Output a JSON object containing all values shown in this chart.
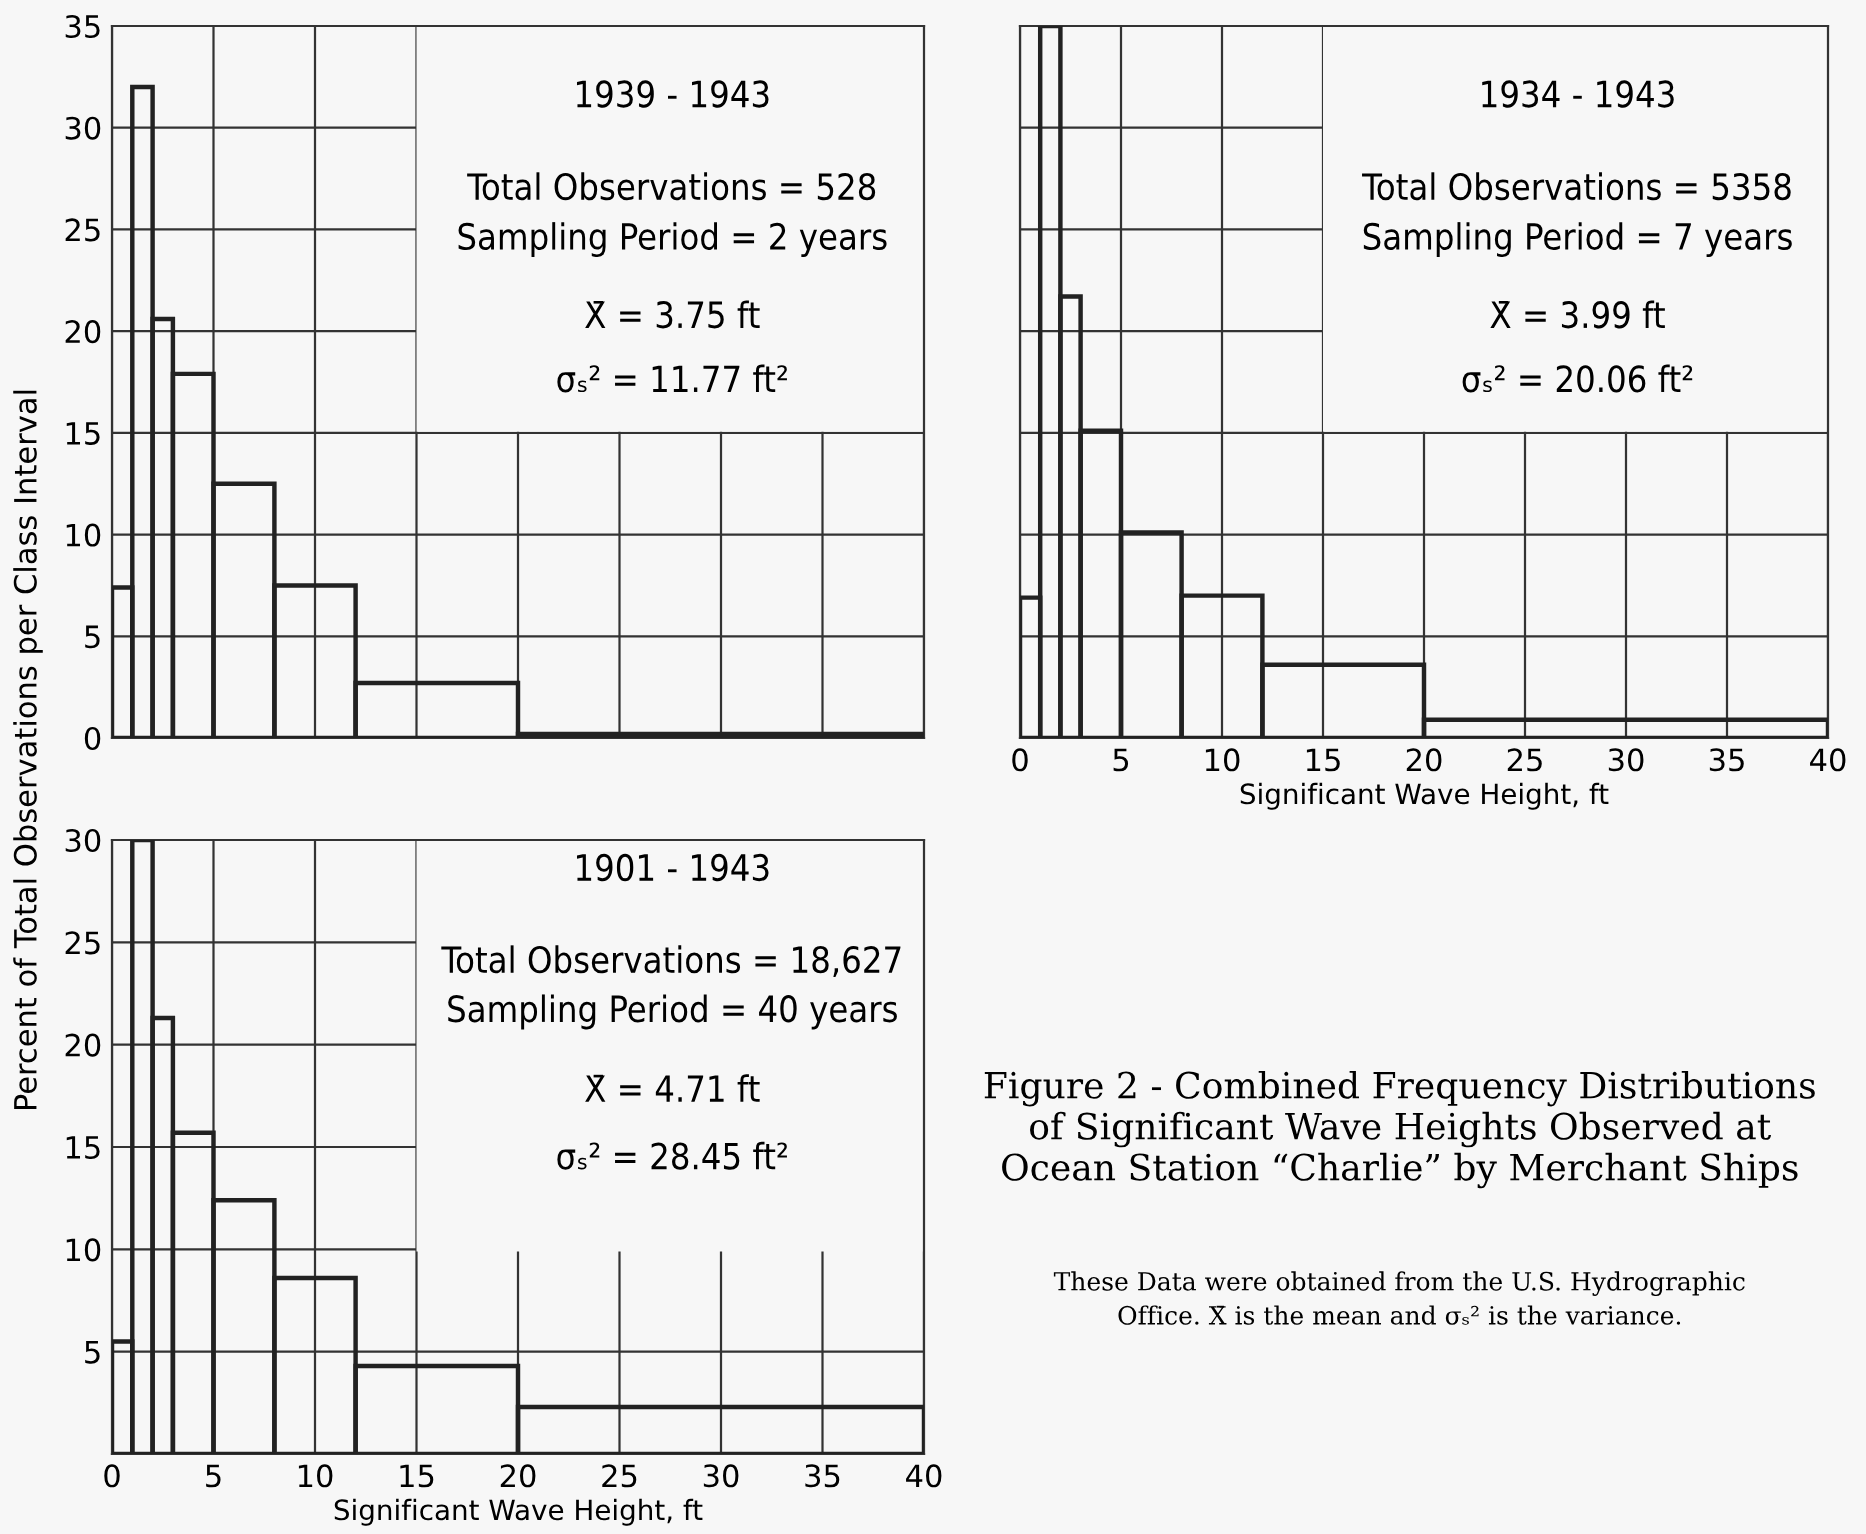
{
  "chart_data": [
    {
      "type": "histogram",
      "bins": [
        0,
        1,
        2,
        3,
        5,
        8,
        12,
        20,
        40
      ],
      "values": [
        7.4,
        32.0,
        20.6,
        17.9,
        12.5,
        7.5,
        2.7,
        0.2
      ],
      "color": "#222222",
      "xlim": [
        0,
        40
      ],
      "ylim": [
        0,
        35
      ],
      "yticks": [
        0,
        5,
        10,
        15,
        20,
        25,
        30,
        35
      ],
      "grid": true,
      "tick_labels": "y",
      "ylabel": "Percent of Total Observations per Class Interval",
      "annotations": [
        "1939 - 1943",
        "Total Observations = 528",
        "Sampling Period = 2 years",
        "X̄ = 3.75 ft",
        "σₛ² = 11.77 ft²"
      ]
    },
    {
      "type": "histogram",
      "bins": [
        0,
        1,
        2,
        3,
        5,
        8,
        12,
        20,
        40
      ],
      "values": [
        6.9,
        35,
        21.7,
        15.1,
        10.1,
        7.0,
        3.6,
        0.9
      ],
      "color": "#222222",
      "xlim": [
        0,
        40
      ],
      "ylim": [
        0,
        35
      ],
      "xticks": [
        0,
        5,
        10,
        15,
        20,
        25,
        30,
        35,
        40
      ],
      "grid": true,
      "tick_labels": "x",
      "xlabel": "Significant Wave Height, ft",
      "annotations": [
        "1934 - 1943",
        "Total Observations = 5358",
        "Sampling Period = 7 years",
        "X̄ = 3.99 ft",
        "σₛ² = 20.06 ft²"
      ],
      "title": "Figure 2 - Combined Frequency Distributions\nof Significant Wave Heights Observed at\nOcean Station “Charlie” by Merchant Ships",
      "subtitle": "These Data were obtained from the U.S. Hydrographic\nOffice. X̄ is the mean and σₛ² is the variance."
    },
    {
      "type": "histogram",
      "bins": [
        0,
        1,
        2,
        3,
        5,
        8,
        12,
        20,
        40
      ],
      "values": [
        5.5,
        30,
        21.3,
        15.7,
        12.4,
        8.6,
        4.3,
        2.3
      ],
      "color": "#222222",
      "xlim": [
        0,
        40
      ],
      "ylim": [
        0,
        30
      ],
      "xticks": [
        0,
        5,
        10,
        15,
        20,
        25,
        30,
        35,
        40
      ],
      "yticks": [
        5,
        10,
        15,
        20,
        25,
        30
      ],
      "grid": true,
      "xlabel": "Significant Wave Height, ft",
      "annotations": [
        "1901 - 1943",
        "Total Observations = 18,627",
        "Sampling Period = 40 years",
        "X̄ = 4.71 ft",
        "σₛ² = 28.45 ft²"
      ]
    }
  ]
}
